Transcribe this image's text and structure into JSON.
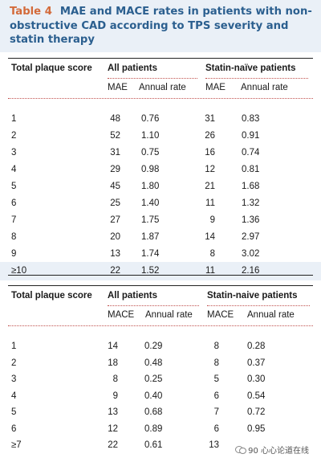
{
  "caption": {
    "label": "Table 4",
    "text": "MAE and MACE rates in patients with non-obstructive CAD according to TPS severity and statin therapy"
  },
  "tables": [
    {
      "headers": {
        "col1": "Total plaque score",
        "group_all": "All patients",
        "group_naive": "Statin-naïve patients",
        "count_all": "MAE",
        "rate_all": "Annual rate",
        "count_naive": "MAE",
        "rate_naive": "Annual rate"
      },
      "rows": [
        [
          "1",
          "48",
          "0.76",
          "31",
          "0.83"
        ],
        [
          "2",
          "52",
          "1.10",
          "26",
          "0.91"
        ],
        [
          "3",
          "31",
          "0.75",
          "16",
          "0.74"
        ],
        [
          "4",
          "29",
          "0.98",
          "12",
          "0.81"
        ],
        [
          "5",
          "45",
          "1.80",
          "21",
          "1.68"
        ],
        [
          "6",
          "25",
          "1.40",
          "11",
          "1.32"
        ],
        [
          "7",
          "27",
          "1.75",
          "9",
          "1.36"
        ],
        [
          "8",
          "20",
          "1.87",
          "14",
          "2.97"
        ],
        [
          "9",
          "13",
          "1.74",
          "8",
          "3.02"
        ],
        [
          "≥10",
          "22",
          "1.52",
          "11",
          "2.16"
        ]
      ]
    },
    {
      "headers": {
        "col1": "Total plaque score",
        "group_all": "All patients",
        "group_naive": "Statin-naive patients",
        "count_all": "MACE",
        "rate_all": "Annual rate",
        "count_naive": "MACE",
        "rate_naive": "Annual rate"
      },
      "rows": [
        [
          "1",
          "14",
          "0.29",
          "8",
          "0.28"
        ],
        [
          "2",
          "18",
          "0.48",
          "8",
          "0.37"
        ],
        [
          "3",
          "8",
          "0.25",
          "5",
          "0.30"
        ],
        [
          "4",
          "9",
          "0.40",
          "6",
          "0.54"
        ],
        [
          "5",
          "13",
          "0.68",
          "7",
          "0.72"
        ],
        [
          "6",
          "12",
          "0.89",
          "6",
          "0.95"
        ],
        [
          "≥7",
          "22",
          "0.61",
          "13",
          ""
        ]
      ]
    }
  ],
  "watermark": "90 心心论道在线",
  "colors": {
    "caption": "#2b5f8f",
    "tag": "#d36a3a",
    "shade": "#eaf0f7",
    "dotted": "#c0504d"
  }
}
